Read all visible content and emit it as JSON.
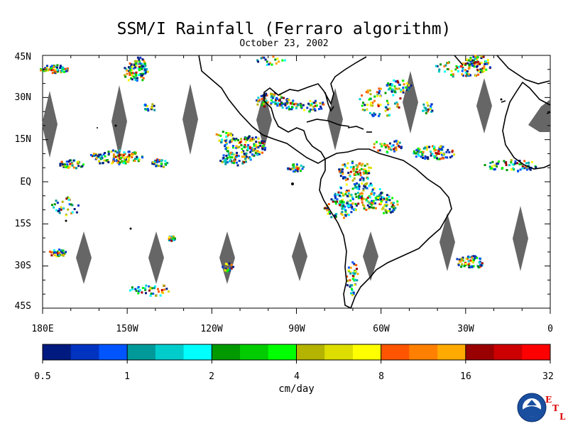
{
  "title": "SSM/I Rainfall (Ferraro algorithm)",
  "subtitle": "October 23, 2002",
  "y_axis": {
    "labels": [
      "45N",
      "30N",
      "15N",
      "EQ",
      "15S",
      "30S",
      "45S"
    ]
  },
  "x_axis": {
    "labels": [
      "180E",
      "150W",
      "120W",
      "90W",
      "60W",
      "30W",
      "0"
    ]
  },
  "colorbar": {
    "units": "cm/day",
    "tick_labels": [
      "0.5",
      "1",
      "2",
      "4",
      "8",
      "16",
      "32"
    ],
    "colors": [
      "#001a80",
      "#0033c0",
      "#0055ff",
      "#009999",
      "#00cccc",
      "#00ffff",
      "#009900",
      "#00cc00",
      "#00ff00",
      "#b3b300",
      "#dddd00",
      "#ffff00",
      "#ff5500",
      "#ff8000",
      "#ffaa00",
      "#990000",
      "#cc0000",
      "#ff0000"
    ]
  },
  "logo": {
    "text": "NOAA",
    "letters": [
      "E",
      "T",
      "L"
    ]
  },
  "colors": {
    "land_outline": "#000000",
    "no_data_swath": "#666666",
    "background": "#ffffff"
  }
}
